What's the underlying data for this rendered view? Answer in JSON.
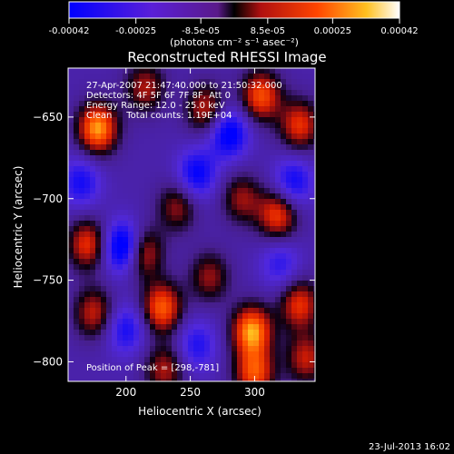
{
  "chart_data": {
    "type": "heatmap",
    "title": "Reconstructed RHESSI Image",
    "xlabel": "Heliocentric X (arcsec)",
    "ylabel": "Heliocentric Y (arcsec)",
    "xlim": [
      155,
      347
    ],
    "ylim": [
      -812,
      -620
    ],
    "x_ticks": [
      200,
      250,
      300
    ],
    "y_ticks": [
      -650,
      -700,
      -750,
      -800
    ],
    "colorbar": {
      "range": [
        -0.00042,
        0.00042
      ],
      "tick_values": [
        -0.00042,
        -0.00025,
        -8.5e-05,
        8.5e-05,
        0.00025,
        0.00042
      ],
      "tick_labels": [
        "-0.00042",
        "-0.00025",
        "-8.5e-05",
        "8.5e-05",
        "0.00025",
        "0.00042"
      ],
      "units_label": "(photons cm⁻² s⁻¹ asec⁻²)"
    },
    "annotations": [
      "27-Apr-2007 21:47:40.000 to 21:50:32.000",
      "Detectors: 4F 5F 6F 7F 8F, Att 0",
      "Energy Range: 12.0 - 25.0 keV",
      "Clean     Total counts: 1.19E+04"
    ],
    "peak_label": "Position of Peak = [298,-781]",
    "peak_position": [
      298,
      -781
    ],
    "timestamp": "23-Jul-2013 16:02",
    "blobs": [
      {
        "x": 178,
        "y": -657,
        "v": 1.0
      },
      {
        "x": 215,
        "y": -632,
        "v": 0.55
      },
      {
        "x": 262,
        "y": -645,
        "v": 0.6
      },
      {
        "x": 305,
        "y": -637,
        "v": 0.8
      },
      {
        "x": 335,
        "y": -655,
        "v": 0.7
      },
      {
        "x": 170,
        "y": -728,
        "v": 0.7
      },
      {
        "x": 212,
        "y": -733,
        "v": 0.8
      },
      {
        "x": 240,
        "y": -705,
        "v": 0.5
      },
      {
        "x": 290,
        "y": -700,
        "v": 0.5
      },
      {
        "x": 318,
        "y": -710,
        "v": 0.75
      },
      {
        "x": 175,
        "y": -770,
        "v": 0.6
      },
      {
        "x": 228,
        "y": -767,
        "v": 0.85
      },
      {
        "x": 265,
        "y": -748,
        "v": 0.5
      },
      {
        "x": 298,
        "y": -781,
        "v": 1.0
      },
      {
        "x": 335,
        "y": -765,
        "v": 0.7
      },
      {
        "x": 230,
        "y": -805,
        "v": 0.55
      },
      {
        "x": 300,
        "y": -807,
        "v": 0.8
      },
      {
        "x": 340,
        "y": -798,
        "v": 0.6
      },
      {
        "x": 199,
        "y": -730,
        "v": -1.0
      },
      {
        "x": 165,
        "y": -690,
        "v": -0.5
      },
      {
        "x": 255,
        "y": -685,
        "v": -0.6
      },
      {
        "x": 280,
        "y": -660,
        "v": -0.7
      },
      {
        "x": 330,
        "y": -690,
        "v": -0.55
      },
      {
        "x": 200,
        "y": -780,
        "v": -0.5
      },
      {
        "x": 255,
        "y": -790,
        "v": -0.45
      },
      {
        "x": 320,
        "y": -740,
        "v": -0.4
      }
    ]
  }
}
